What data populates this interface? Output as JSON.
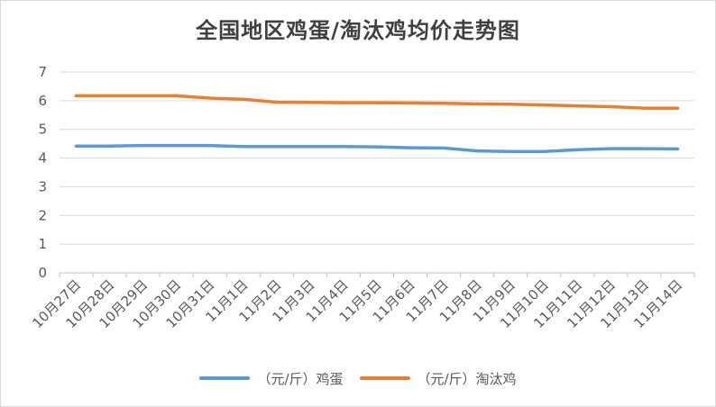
{
  "chart_data": {
    "type": "line",
    "title": "全国地区鸡蛋/淘汰鸡均价走势图",
    "categories": [
      "10月27日",
      "10月28日",
      "10月29日",
      "10月30日",
      "10月31日",
      "11月1日",
      "11月2日",
      "11月3日",
      "11月4日",
      "11月5日",
      "11月6日",
      "11月7日",
      "11月8日",
      "11月9日",
      "11月10日",
      "11月11日",
      "11月12日",
      "11月13日",
      "11月14日"
    ],
    "series": [
      {
        "name": "（元/斤）鸡蛋",
        "color": "#5b9bd5",
        "values": [
          4.42,
          4.42,
          4.44,
          4.44,
          4.44,
          4.4,
          4.4,
          4.4,
          4.4,
          4.39,
          4.36,
          4.35,
          4.25,
          4.23,
          4.23,
          4.29,
          4.33,
          4.33,
          4.32
        ]
      },
      {
        "name": "（元/斤）淘汰鸡",
        "color": "#ed7d31",
        "values": [
          6.17,
          6.17,
          6.17,
          6.17,
          6.09,
          6.05,
          5.95,
          5.94,
          5.93,
          5.93,
          5.92,
          5.91,
          5.89,
          5.88,
          5.85,
          5.82,
          5.79,
          5.74,
          5.74
        ]
      }
    ],
    "yticks": [
      "0",
      "1",
      "2",
      "3",
      "4",
      "5",
      "6",
      "7"
    ],
    "ylim": [
      0,
      7
    ],
    "xlabel": "",
    "ylabel": "",
    "grid": true,
    "legend_position": "bottom"
  }
}
